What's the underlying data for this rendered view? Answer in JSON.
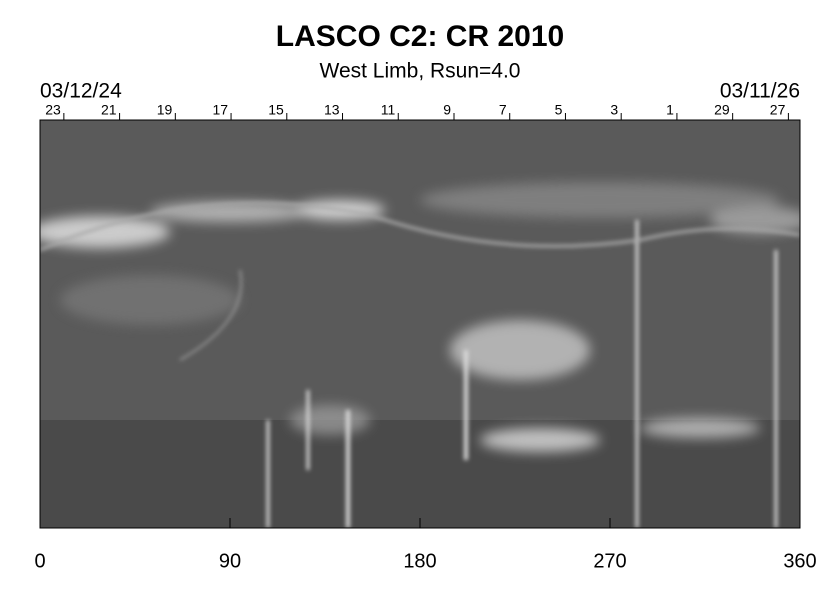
{
  "chart_data": {
    "type": "image",
    "title": "LASCO C2: CR 2010",
    "subtitle": "West Limb, Rsun=4.0",
    "annotations": [
      "03/12/24",
      "03/11/26"
    ],
    "xlim": [
      0,
      360
    ],
    "xticks": [
      0,
      90,
      180,
      270,
      360
    ],
    "x2ticks": [
      {
        "value": 11.3,
        "label": "23"
      },
      {
        "value": 37.7,
        "label": "21"
      },
      {
        "value": 64.1,
        "label": "19"
      },
      {
        "value": 90.5,
        "label": "17"
      },
      {
        "value": 116.9,
        "label": "15"
      },
      {
        "value": 143.3,
        "label": "13"
      },
      {
        "value": 169.7,
        "label": "11"
      },
      {
        "value": 196.1,
        "label": "9"
      },
      {
        "value": 222.5,
        "label": "7"
      },
      {
        "value": 248.9,
        "label": "5"
      },
      {
        "value": 275.3,
        "label": "3"
      },
      {
        "value": 301.7,
        "label": "1"
      },
      {
        "value": 328.1,
        "label": "29"
      },
      {
        "value": 354.5,
        "label": "27"
      }
    ]
  }
}
